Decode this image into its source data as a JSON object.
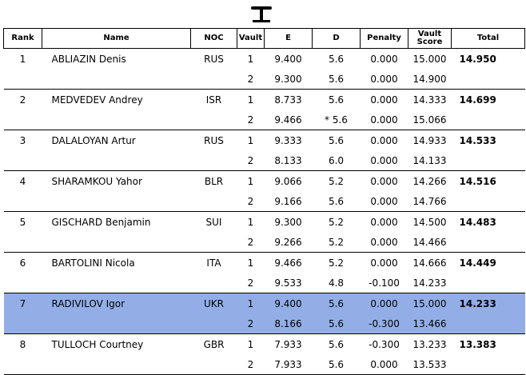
{
  "columns": {
    "rank": "Rank",
    "name": "Name",
    "noc": "NOC",
    "vault": "Vault",
    "e": "E",
    "d": "D",
    "penalty": "Penalty",
    "vault_score_1": "Vault",
    "vault_score_2": "Score",
    "total": "Total"
  },
  "highlight_color": "#93aee7",
  "rows": [
    {
      "rank": "1",
      "name": "ABLIAZIN Denis",
      "noc": "RUS",
      "total": "14.950",
      "vaults": [
        {
          "vault": "1",
          "e": "9.400",
          "d": "5.6",
          "penalty": "0.000",
          "score": "15.000"
        },
        {
          "vault": "2",
          "e": "9.300",
          "d": "5.6",
          "penalty": "0.000",
          "score": "14.900"
        }
      ]
    },
    {
      "rank": "2",
      "name": "MEDVEDEV Andrey",
      "noc": "ISR",
      "total": "14.699",
      "vaults": [
        {
          "vault": "1",
          "e": "8.733",
          "d": "5.6",
          "penalty": "0.000",
          "score": "14.333"
        },
        {
          "vault": "2",
          "e": "9.466",
          "d": "* 5.6",
          "penalty": "0.000",
          "score": "15.066"
        }
      ]
    },
    {
      "rank": "3",
      "name": "DALALOYAN Artur",
      "noc": "RUS",
      "total": "14.533",
      "vaults": [
        {
          "vault": "1",
          "e": "9.333",
          "d": "5.6",
          "penalty": "0.000",
          "score": "14.933"
        },
        {
          "vault": "2",
          "e": "8.133",
          "d": "6.0",
          "penalty": "0.000",
          "score": "14.133"
        }
      ]
    },
    {
      "rank": "4",
      "name": "SHARAMKOU Yahor",
      "noc": "BLR",
      "total": "14.516",
      "vaults": [
        {
          "vault": "1",
          "e": "9.066",
          "d": "5.2",
          "penalty": "0.000",
          "score": "14.266"
        },
        {
          "vault": "2",
          "e": "9.166",
          "d": "5.6",
          "penalty": "0.000",
          "score": "14.766"
        }
      ]
    },
    {
      "rank": "5",
      "name": "GISCHARD Benjamin",
      "noc": "SUI",
      "total": "14.483",
      "vaults": [
        {
          "vault": "1",
          "e": "9.300",
          "d": "5.2",
          "penalty": "0.000",
          "score": "14.500"
        },
        {
          "vault": "2",
          "e": "9.266",
          "d": "5.2",
          "penalty": "0.000",
          "score": "14.466"
        }
      ]
    },
    {
      "rank": "6",
      "name": "BARTOLINI Nicola",
      "noc": "ITA",
      "total": "14.449",
      "vaults": [
        {
          "vault": "1",
          "e": "9.466",
          "d": "5.2",
          "penalty": "0.000",
          "score": "14.666"
        },
        {
          "vault": "2",
          "e": "9.533",
          "d": "4.8",
          "penalty": "-0.100",
          "score": "14.233"
        }
      ]
    },
    {
      "rank": "7",
      "name": "RADIVILOV Igor",
      "noc": "UKR",
      "total": "14.233",
      "highlight": true,
      "vaults": [
        {
          "vault": "1",
          "e": "9.400",
          "d": "5.6",
          "penalty": "0.000",
          "score": "15.000"
        },
        {
          "vault": "2",
          "e": "8.166",
          "d": "5.6",
          "penalty": "-0.300",
          "score": "13.466"
        }
      ]
    },
    {
      "rank": "8",
      "name": "TULLOCH Courtney",
      "noc": "GBR",
      "total": "13.383",
      "vaults": [
        {
          "vault": "1",
          "e": "7.933",
          "d": "5.6",
          "penalty": "-0.300",
          "score": "13.233"
        },
        {
          "vault": "2",
          "e": "7.933",
          "d": "5.6",
          "penalty": "0.000",
          "score": "13.533"
        }
      ]
    }
  ]
}
